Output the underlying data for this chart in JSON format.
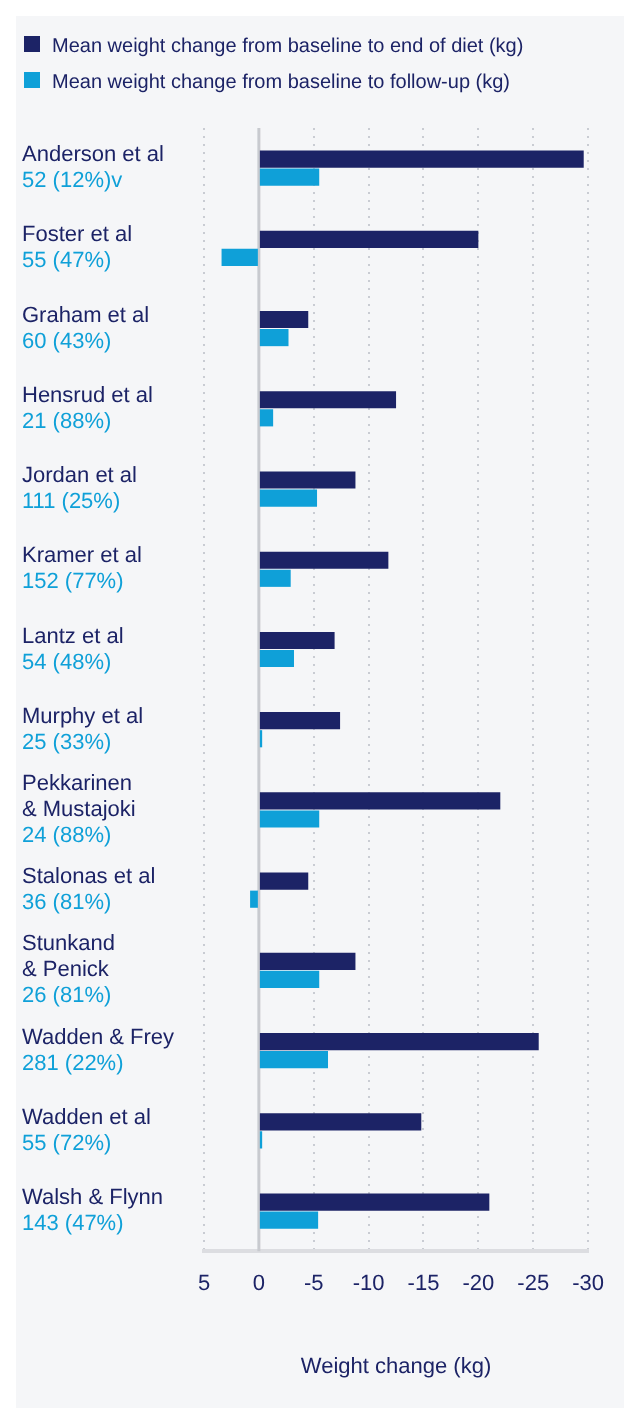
{
  "chart_data": {
    "type": "bar",
    "orientation": "horizontal",
    "xlabel": "Weight change (kg)",
    "categories": [
      "Anderson et al\n52 (12%)v",
      "Foster et al\n55 (47%)",
      "Graham et al\n60 (43%)",
      "Hensrud et al\n21 (88%)",
      "Jordan et al\n111 (25%)",
      "Kramer et al\n152 (77%)",
      "Lantz et al\n54 (48%)",
      "Murphy et al\n25 (33%)",
      "Pekkarinen\n& Mustajoki\n24 (88%)",
      "Stalonas et al\n36 (81%)",
      "Stunkand\n& Penick\n26 (81%)",
      "Wadden & Frey\n281 (22%)",
      "Wadden et al\n55 (72%)",
      "Walsh & Flynn\n143 (47%)"
    ],
    "series": [
      {
        "name": "Mean weight change from baseline to end of diet (kg)",
        "color": "#1c2366",
        "values": [
          -29.6,
          -20.0,
          -4.5,
          -12.5,
          -8.8,
          -11.8,
          -6.9,
          -7.4,
          -22.0,
          -4.5,
          -8.8,
          -25.5,
          -14.8,
          -21.0
        ]
      },
      {
        "name": "Mean weight change from baseline to follow-up (kg)",
        "color": "#0fa0d8",
        "values": [
          -5.5,
          3.4,
          -2.7,
          -1.3,
          -5.3,
          -2.9,
          -3.2,
          -0.3,
          -5.5,
          0.8,
          -5.5,
          -6.3,
          -0.3,
          -5.4
        ]
      }
    ],
    "xlim": [
      5,
      -30
    ],
    "xticks": [
      5,
      0,
      -5,
      -10,
      -15,
      -20,
      -25,
      -30
    ],
    "grid": "x",
    "legend": "top left",
    "ref_lines": [
      {
        "axis": "x",
        "value": 0,
        "color": "#c8cacf"
      }
    ]
  }
}
